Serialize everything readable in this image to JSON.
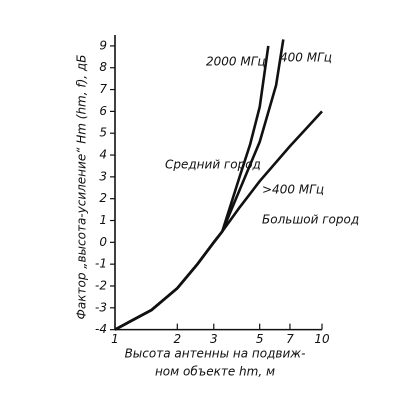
{
  "chart_data": {
    "type": "line",
    "x_log": true,
    "xlim": [
      1,
      10
    ],
    "xticks": [
      1,
      2,
      3,
      5,
      7,
      10
    ],
    "ylim": [
      -4.2,
      9.5
    ],
    "yticks": [
      -4,
      -3,
      -2,
      -1,
      0,
      1,
      2,
      3,
      4,
      5,
      6,
      7,
      8,
      9
    ],
    "ylabel": "Фактор „высота-усиление“ Hm (hm, f), дБ",
    "xlabel": [
      "Высота антенны на подвиж-",
      "ном объекте hm, м"
    ],
    "annotations": [
      "Средний город",
      "Большой город"
    ],
    "series": [
      {
        "name": "2000 МГц",
        "color": "#111111",
        "x": [
          1,
          1.5,
          2,
          2.5,
          3,
          3.3,
          4,
          4.5,
          5,
          5.5
        ],
        "values": [
          -4,
          -3.1,
          -2.1,
          -1,
          0,
          0.5,
          3,
          4.5,
          6.2,
          9
        ]
      },
      {
        "name": "400 МГц",
        "color": "#111111",
        "x": [
          1,
          1.5,
          2,
          2.5,
          3,
          3.3,
          4,
          5,
          6,
          6.5
        ],
        "values": [
          -4,
          -3.1,
          -2.1,
          -1,
          0,
          0.5,
          2.4,
          4.6,
          7.2,
          9.3
        ]
      },
      {
        "name": ">400 МГц",
        "color": "#111111",
        "x": [
          1,
          1.5,
          2,
          2.5,
          3,
          3.3,
          4,
          5,
          7,
          10
        ],
        "values": [
          -4,
          -3.1,
          -2.1,
          -1,
          0,
          0.5,
          1.6,
          2.8,
          4.4,
          6
        ]
      }
    ]
  }
}
